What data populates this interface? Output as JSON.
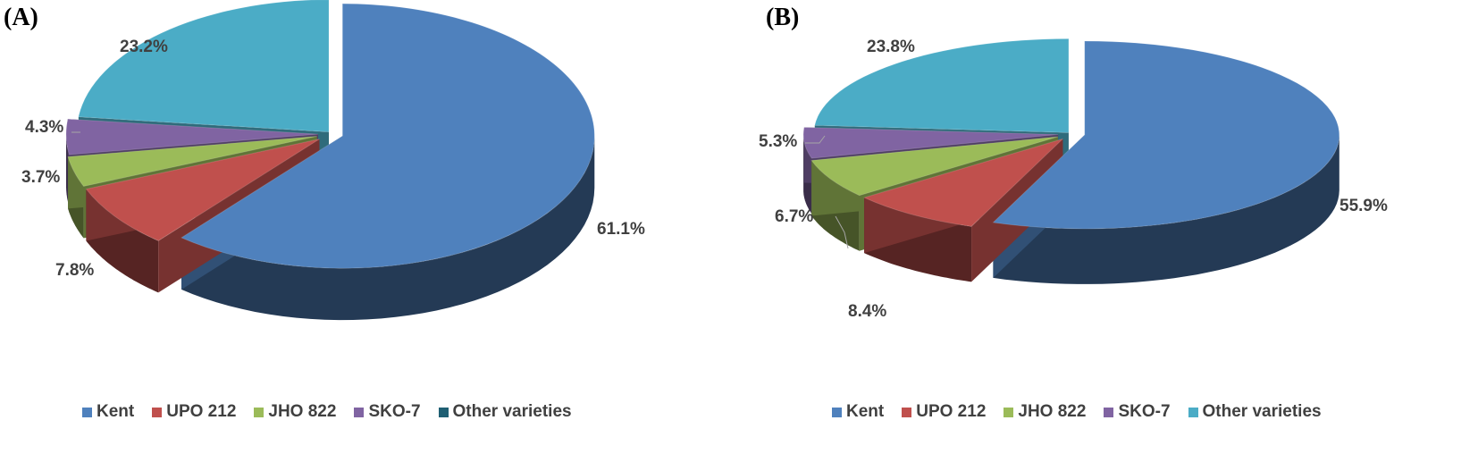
{
  "chart_data": [
    {
      "panel_label": "(A)",
      "type": "pie",
      "categories": [
        "Kent",
        "UPO 212",
        "JHO 822",
        "SKO-7",
        "Other varieties"
      ],
      "values": [
        61.1,
        7.8,
        3.7,
        4.3,
        23.2
      ],
      "data_labels": [
        "61.1%",
        "7.8%",
        "3.7%",
        "4.3%",
        "23.2%"
      ],
      "colors": [
        "#4f81bd",
        "#c0504d",
        "#9bbb59",
        "#8064a2",
        "#4bacc6"
      ],
      "legend": {
        "placement": "bottom",
        "entries": [
          "Kent",
          "UPO 212",
          "JHO 822",
          "SKO-7",
          "Other varieties"
        ],
        "swatch_colors": [
          "#4f81bd",
          "#c0504d",
          "#9bbb59",
          "#8064a2",
          "#1f5f73"
        ]
      },
      "style": "3d-exploded"
    },
    {
      "panel_label": "(B)",
      "type": "pie",
      "categories": [
        "Kent",
        "UPO 212",
        "JHO 822",
        "SKO-7",
        "Other varieties"
      ],
      "values": [
        55.9,
        8.4,
        6.7,
        5.3,
        23.8
      ],
      "data_labels": [
        "55.9%",
        "8.4%",
        "6.7%",
        "5.3%",
        "23.8%"
      ],
      "colors": [
        "#4f81bd",
        "#c0504d",
        "#9bbb59",
        "#8064a2",
        "#4bacc6"
      ],
      "legend": {
        "placement": "bottom",
        "entries": [
          "Kent",
          "UPO 212",
          "JHO 822",
          "SKO-7",
          "Other varieties"
        ],
        "swatch_colors": [
          "#4f81bd",
          "#c0504d",
          "#9bbb59",
          "#8064a2",
          "#4bacc6"
        ]
      },
      "style": "3d-exploded"
    }
  ]
}
